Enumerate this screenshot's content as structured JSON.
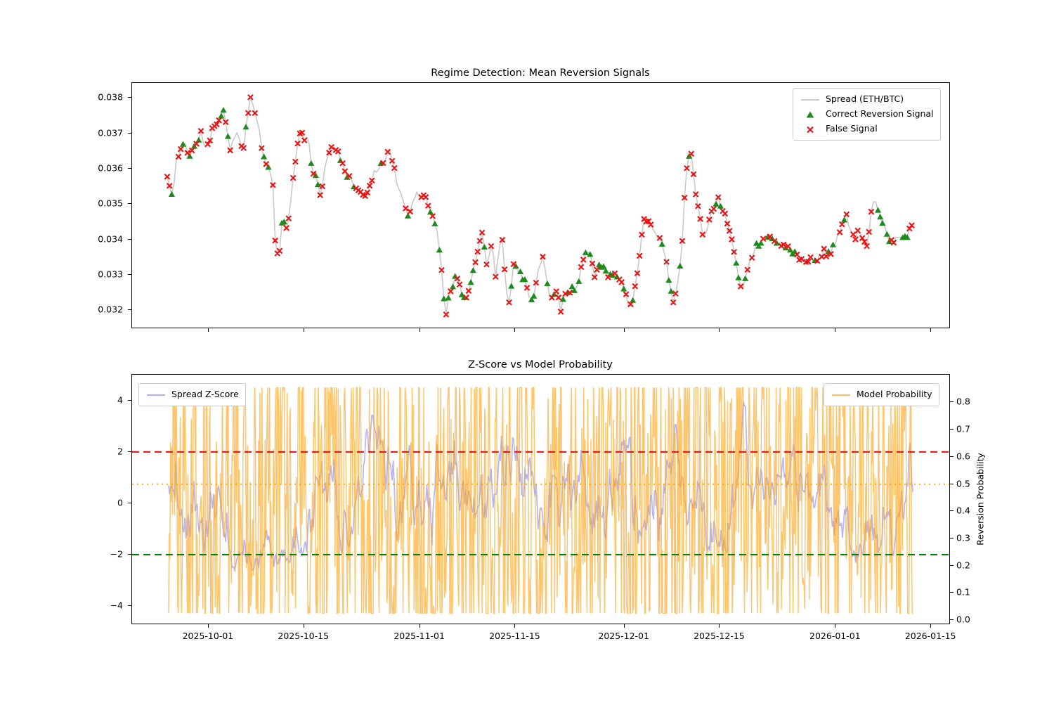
{
  "figure": {
    "background": "#ffffff"
  },
  "chart_data": [
    {
      "id": "regime-detection",
      "type": "line",
      "title": "Regime Detection: Mean Reversion Signals",
      "start_date": "2025-09-25",
      "x_unit": "days_from_start_date",
      "xlim_days": [
        -5.15,
        114.95
      ],
      "ylim": [
        0.03147,
        0.03842
      ],
      "ytick_labels": [
        "0.032",
        "0.033",
        "0.034",
        "0.035",
        "0.036",
        "0.037",
        "0.038"
      ],
      "ytick_values": [
        0.032,
        0.033,
        0.034,
        0.035,
        0.036,
        0.037,
        0.038
      ],
      "grid": false,
      "legend_position": "upper right",
      "legend": [
        "Spread (ETH/BTC)",
        "Correct Reversion Signal",
        "False Signal"
      ],
      "colors": {
        "spread_line": "#c9c9c9",
        "correct_signal": "#1f8b1f",
        "false_signal": "#e81414"
      },
      "series": [
        {
          "name": "Spread (ETH/BTC)",
          "style": "line",
          "points": [
            [
              0,
              0.0358
            ],
            [
              0.8,
              0.0352
            ],
            [
              1.3,
              0.0362
            ],
            [
              2.2,
              0.0367
            ],
            [
              3.4,
              0.0364
            ],
            [
              4.9,
              0.037
            ],
            [
              5.7,
              0.0364
            ],
            [
              6.5,
              0.037
            ],
            [
              8.2,
              0.0376
            ],
            [
              9.3,
              0.0365
            ],
            [
              10.3,
              0.037
            ],
            [
              11.1,
              0.0366
            ],
            [
              12.2,
              0.038
            ],
            [
              13.4,
              0.0372
            ],
            [
              14,
              0.0364
            ],
            [
              15.5,
              0.0356
            ],
            [
              15.8,
              0.034
            ],
            [
              16.3,
              0.0334
            ],
            [
              17,
              0.0346
            ],
            [
              17.6,
              0.0342
            ],
            [
              18.9,
              0.0364
            ],
            [
              19.6,
              0.0371
            ],
            [
              20.1,
              0.0367
            ],
            [
              20.6,
              0.0371
            ],
            [
              21.2,
              0.036
            ],
            [
              22,
              0.0357
            ],
            [
              22.5,
              0.0352
            ],
            [
              23.5,
              0.0364
            ],
            [
              24.3,
              0.0367
            ],
            [
              25.4,
              0.0363
            ],
            [
              26.6,
              0.0357
            ],
            [
              27.9,
              0.0354
            ],
            [
              29.2,
              0.0352
            ],
            [
              30.4,
              0.0359
            ],
            [
              31.8,
              0.0362
            ],
            [
              32.6,
              0.0365
            ],
            [
              33.8,
              0.0355
            ],
            [
              35.4,
              0.0347
            ],
            [
              36.6,
              0.0353
            ],
            [
              37.9,
              0.0352
            ],
            [
              39,
              0.0347
            ],
            [
              39.7,
              0.034
            ],
            [
              40.3,
              0.033
            ],
            [
              40.8,
              0.0318
            ],
            [
              41.5,
              0.0326
            ],
            [
              42.4,
              0.0329
            ],
            [
              43.1,
              0.0325
            ],
            [
              43.8,
              0.0322
            ],
            [
              44.6,
              0.0328
            ],
            [
              45.7,
              0.0338
            ],
            [
              46.2,
              0.0342
            ],
            [
              46.9,
              0.0333
            ],
            [
              47.7,
              0.0339
            ],
            [
              48.2,
              0.033
            ],
            [
              49.1,
              0.0342
            ],
            [
              49.8,
              0.0325
            ],
            [
              50.1,
              0.032
            ],
            [
              50.8,
              0.0333
            ],
            [
              51.9,
              0.033
            ],
            [
              52.9,
              0.0326
            ],
            [
              53.7,
              0.0322
            ],
            [
              55,
              0.0337
            ],
            [
              55.8,
              0.0327
            ],
            [
              56.3,
              0.0322
            ],
            [
              57,
              0.0327
            ],
            [
              57.7,
              0.032
            ],
            [
              58.7,
              0.0326
            ],
            [
              59.9,
              0.0325
            ],
            [
              61.1,
              0.0336
            ],
            [
              61.9,
              0.0337
            ],
            [
              62.7,
              0.0329
            ],
            [
              63.5,
              0.0333
            ],
            [
              64.7,
              0.033
            ],
            [
              66.1,
              0.033
            ],
            [
              67.1,
              0.0326
            ],
            [
              67.8,
              0.032
            ],
            [
              68.9,
              0.0329
            ],
            [
              69.9,
              0.0345
            ],
            [
              70.9,
              0.0344
            ],
            [
              71.9,
              0.0341
            ],
            [
              73,
              0.0336
            ],
            [
              73.5,
              0.033
            ],
            [
              74.3,
              0.0322
            ],
            [
              75.4,
              0.0334
            ],
            [
              76.1,
              0.0358
            ],
            [
              76.8,
              0.0366
            ],
            [
              77.6,
              0.0352
            ],
            [
              78.7,
              0.034
            ],
            [
              79.9,
              0.0348
            ],
            [
              80.9,
              0.0351
            ],
            [
              82.3,
              0.0344
            ],
            [
              83.3,
              0.0335
            ],
            [
              84.3,
              0.0325
            ],
            [
              85.4,
              0.0334
            ],
            [
              86.7,
              0.0339
            ],
            [
              87.9,
              0.0341
            ],
            [
              89.5,
              0.0339
            ],
            [
              91,
              0.0337
            ],
            [
              92.6,
              0.0336
            ],
            [
              93.6,
              0.0334
            ],
            [
              95,
              0.0334
            ],
            [
              96.2,
              0.0337
            ],
            [
              97.2,
              0.0336
            ],
            [
              98.2,
              0.034
            ],
            [
              99.6,
              0.0347
            ],
            [
              100.8,
              0.034
            ],
            [
              101.5,
              0.0343
            ],
            [
              102.6,
              0.0338
            ],
            [
              103.7,
              0.0352
            ],
            [
              105,
              0.0344
            ],
            [
              106,
              0.0339
            ],
            [
              107,
              0.0341
            ],
            [
              108,
              0.034
            ],
            [
              108.9,
              0.0343
            ],
            [
              109.4,
              0.0344
            ]
          ]
        },
        {
          "name": "Correct Reversion Signal",
          "style": "scatter",
          "marker": "triangle-up",
          "placement": "on spread line"
        },
        {
          "name": "False Signal",
          "style": "scatter",
          "marker": "x",
          "placement": "on spread line"
        }
      ],
      "marker_gen": {
        "seed": 7,
        "step_days": 0.33,
        "p_false_signal": 0.5,
        "p_correct_signal": 0.28,
        "y_jitter": 7e-05,
        "line_noise": 6e-05
      }
    },
    {
      "id": "zscore-vs-probability",
      "type": "line",
      "title": "Z-Score vs Model Probability",
      "xlim_days": [
        -5.15,
        114.95
      ],
      "ylim_left": [
        -4.74,
        5.01
      ],
      "ylim_right": [
        -0.018,
        0.902
      ],
      "ylabel_right": "Reversion Probability",
      "ytick_labels_left": [
        "4",
        "2",
        "0",
        "−2",
        "−4"
      ],
      "ytick_values_left": [
        4,
        2,
        0,
        -2,
        -4
      ],
      "ytick_labels_right": [
        "0.0",
        "0.1",
        "0.2",
        "0.3",
        "0.4",
        "0.5",
        "0.6",
        "0.7",
        "0.8"
      ],
      "ytick_values_right": [
        0.0,
        0.1,
        0.2,
        0.3,
        0.4,
        0.5,
        0.6,
        0.7,
        0.8
      ],
      "xtick_labels": [
        {
          "label": "2025-10-01",
          "t": 6.08
        },
        {
          "label": "2025-10-15",
          "t": 20.08
        },
        {
          "label": "2025-11-01",
          "t": 37.08
        },
        {
          "label": "2025-11-15",
          "t": 51.08
        },
        {
          "label": "2025-12-01",
          "t": 67.08
        },
        {
          "label": "2025-12-15",
          "t": 81.08
        },
        {
          "label": "2026-01-01",
          "t": 98.08
        },
        {
          "label": "2026-01-15",
          "t": 112.08
        }
      ],
      "legend_left": [
        "Spread Z-Score"
      ],
      "legend_right": [
        "Model Probability"
      ],
      "colors": {
        "zscore_line": "rgba(122,122,235,0.55)",
        "probability_line": "rgba(255,166,30,0.65)"
      },
      "series": [
        {
          "name": "Spread Z-Score",
          "axis": "left",
          "approx_range": [
            -2.6,
            4.45
          ],
          "gen": {
            "seed": 11,
            "n": 730,
            "phi": 0.93,
            "sigma": 0.55,
            "offset": 0.3,
            "t_start": 0.2,
            "t_end": 109.4
          }
        },
        {
          "name": "Model Probability",
          "axis": "right",
          "approx_range": [
            0.025,
            0.855
          ],
          "gen": {
            "seed": 23,
            "n": 1150,
            "phi": 0.3,
            "mean": 0.44,
            "sigma": 0.42,
            "t_start": 0.2,
            "t_end": 109.4
          }
        }
      ],
      "hlines": [
        {
          "name": "z-upper-entry-threshold",
          "value": 2.0,
          "scale": "z",
          "color": "#e41010",
          "dash": "dashed"
        },
        {
          "name": "z-lower-entry-threshold",
          "value": -2.0,
          "scale": "z",
          "color": "#008000",
          "dash": "dashed"
        },
        {
          "name": "probability-threshold",
          "value": 0.5,
          "scale": "probability",
          "color": "#ff9f00",
          "dash": "dotted"
        }
      ]
    }
  ]
}
